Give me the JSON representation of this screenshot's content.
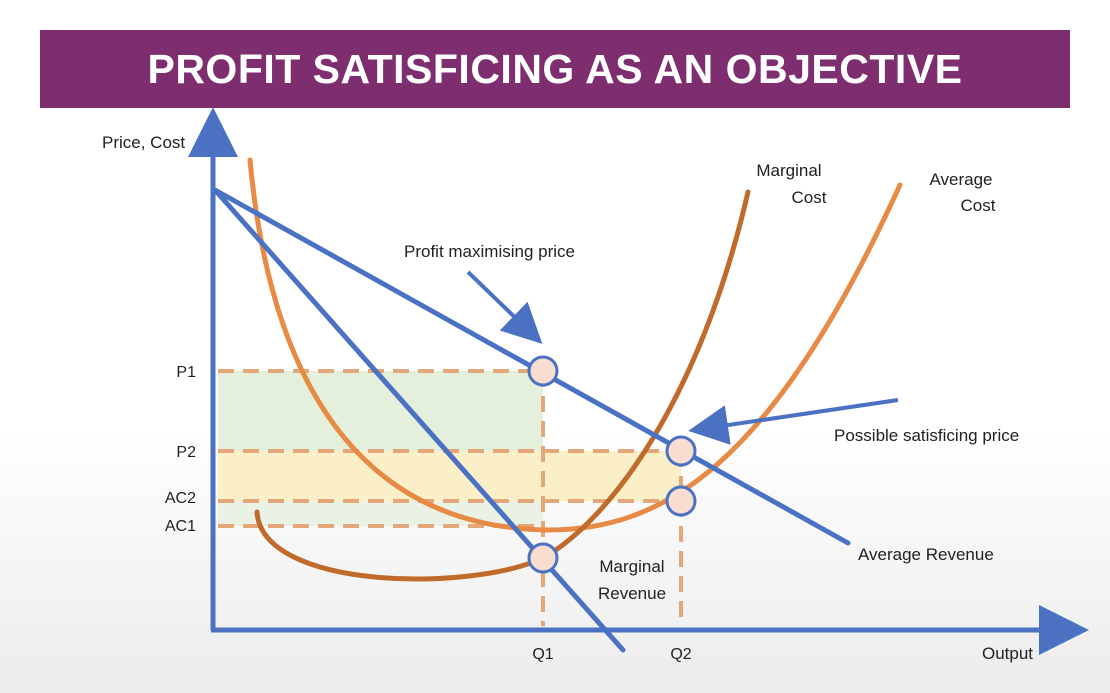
{
  "title": "PROFIT SATISFICING AS AN OBJECTIVE",
  "axes": {
    "y_label": "Price, Cost",
    "x_label": "Output",
    "y_ticks": [
      "P1",
      "P2",
      "AC2",
      "AC1"
    ],
    "x_ticks": [
      "Q1",
      "Q2"
    ]
  },
  "curves": {
    "marginal_cost": [
      "Marginal",
      "Cost"
    ],
    "average_cost": [
      "Average",
      "Cost"
    ],
    "marginal_revenue": [
      "Marginal",
      "Revenue"
    ],
    "average_revenue": "Average Revenue"
  },
  "annotations": {
    "profit_max": "Profit maximising price",
    "satisficing": "Possible satisficing price"
  },
  "colors": {
    "banner": "#7e2d6f",
    "revenue_line": "#4b72c2",
    "marginal_cost": "#c06a2b",
    "average_cost": "#e68a45",
    "guide_dash": "#e3a77a",
    "profit_area_green": "#e4f0dc",
    "profit_area_yellow": "#fbefc7",
    "point_fill": "#f9ded0"
  }
}
